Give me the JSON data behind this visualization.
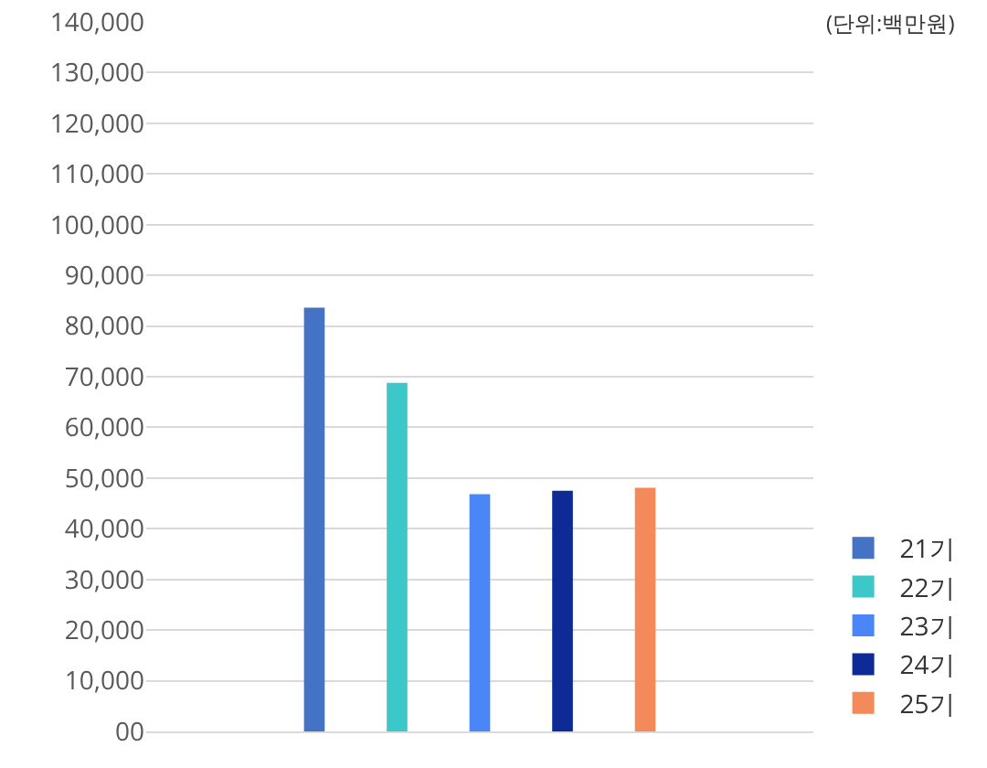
{
  "chart_data": {
    "type": "bar",
    "categories": [
      null
    ],
    "series": [
      {
        "name": "21기",
        "color": "#4472c4",
        "values": [
          83600
        ]
      },
      {
        "name": "22기",
        "color": "#3cc8c8",
        "values": [
          68800
        ]
      },
      {
        "name": "23기",
        "color": "#4a86f7",
        "values": [
          46800
        ]
      },
      {
        "name": "24기",
        "color": "#0e2a97",
        "values": [
          47500
        ]
      },
      {
        "name": "25기",
        "color": "#f4895a",
        "values": [
          48100
        ]
      }
    ],
    "ylim": [
      0,
      140000
    ],
    "yticks": [
      {
        "value": 0,
        "label": "00"
      },
      {
        "value": 10000,
        "label": "10,000"
      },
      {
        "value": 20000,
        "label": "20,000"
      },
      {
        "value": 30000,
        "label": "30,000"
      },
      {
        "value": 40000,
        "label": "40,000"
      },
      {
        "value": 50000,
        "label": "50,000"
      },
      {
        "value": 60000,
        "label": "60,000"
      },
      {
        "value": 70000,
        "label": "70,000"
      },
      {
        "value": 80000,
        "label": "80,000"
      },
      {
        "value": 90000,
        "label": "90,000"
      },
      {
        "value": 100000,
        "label": "100,000"
      },
      {
        "value": 110000,
        "label": "110,000"
      },
      {
        "value": 120000,
        "label": "120,000"
      },
      {
        "value": 130000,
        "label": "130,000"
      },
      {
        "value": 140000,
        "label": "140,000"
      }
    ],
    "grid": "y",
    "legend": "bottom right",
    "tick_labels": "y",
    "annotations": [
      "(단위:백만원)"
    ]
  }
}
